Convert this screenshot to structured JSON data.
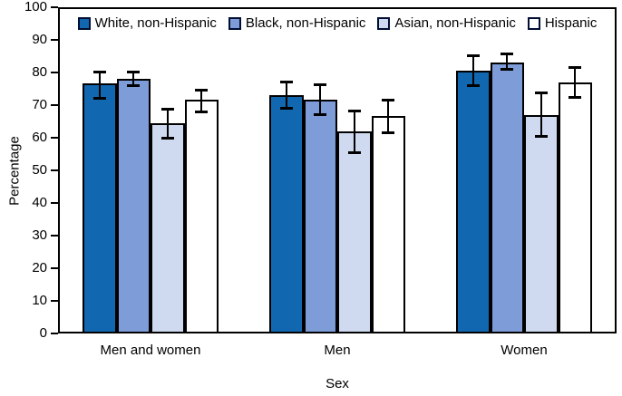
{
  "chart_data": {
    "type": "bar",
    "title": "",
    "xlabel": "Sex",
    "ylabel": "Percentage",
    "ylim": [
      0,
      100
    ],
    "ytick_step": 10,
    "grid": false,
    "legend_position": "top-center-inside",
    "error_bars": true,
    "categories": [
      "Men and women",
      "Men",
      "Women"
    ],
    "series": [
      {
        "name": "White, non-Hispanic",
        "color": "#1168B1",
        "values": [
          76,
          72.5,
          80
        ],
        "ci_low": [
          71,
          68,
          75
        ],
        "ci_high": [
          80,
          77,
          85
        ]
      },
      {
        "name": "Black, non-Hispanic",
        "color": "#7E9CD8",
        "values": [
          77.5,
          71,
          82.5
        ],
        "ci_low": [
          75,
          66,
          80
        ],
        "ci_high": [
          80,
          76,
          85.5
        ]
      },
      {
        "name": "Asian, non-Hispanic",
        "color": "#CFDAF1",
        "values": [
          64,
          61.5,
          66.5
        ],
        "ci_low": [
          59,
          54.5,
          59.5
        ],
        "ci_high": [
          68.5,
          68,
          73.5
        ]
      },
      {
        "name": "Hispanic",
        "color": "#FFFFFF",
        "values": [
          71,
          66,
          76.5
        ],
        "ci_low": [
          67,
          60.5,
          71.5
        ],
        "ci_high": [
          74.5,
          71.5,
          81.5
        ]
      }
    ],
    "style": {
      "axis_color": "#000000",
      "bar_border_color": "#000000",
      "error_bar_color": "#000000",
      "text_color": "#000000",
      "background": "#FFFFFF"
    }
  }
}
